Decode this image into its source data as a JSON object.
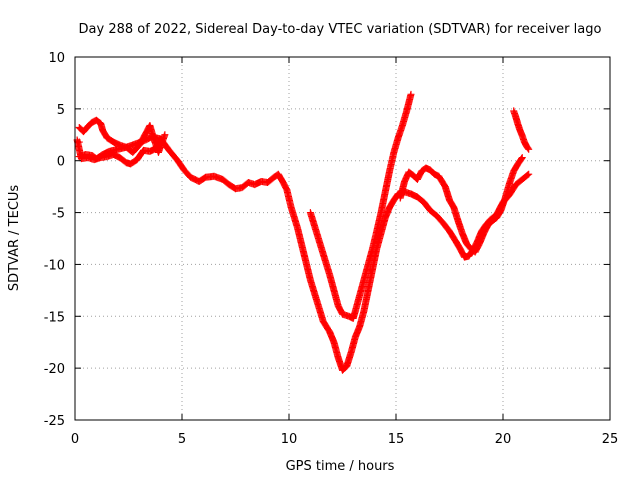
{
  "chart_data": {
    "type": "scatter",
    "title": "Day 288 of 2022, Sidereal Day-to-day VTEC variation (SDTVAR) for receiver lago",
    "xlabel": "GPS time / hours",
    "ylabel": "SDTVAR / TECUs",
    "xlim": [
      0,
      25
    ],
    "ylim": [
      -25,
      10
    ],
    "xticks": [
      0,
      5,
      10,
      15,
      20,
      25
    ],
    "yticks": [
      -25,
      -20,
      -15,
      -10,
      -5,
      0,
      5,
      10
    ],
    "grid": true,
    "marker": "+",
    "series": [
      {
        "name": "SDTVAR",
        "color": "#ff0000",
        "tracks": [
          [
            [
              0.2,
              0.4
            ],
            [
              0.5,
              0.6
            ],
            [
              0.8,
              0.5
            ],
            [
              1.0,
              0.2
            ],
            [
              1.3,
              0.6
            ],
            [
              1.6,
              0.9
            ],
            [
              2.0,
              1.1
            ],
            [
              2.4,
              1.3
            ],
            [
              2.8,
              1.6
            ],
            [
              3.2,
              1.9
            ],
            [
              3.6,
              2.3
            ],
            [
              4.0,
              2.1
            ],
            [
              4.4,
              1.0
            ],
            [
              4.8,
              0.0
            ],
            [
              5.1,
              -0.9
            ],
            [
              5.4,
              -1.6
            ],
            [
              5.8,
              -2.0
            ],
            [
              6.1,
              -1.6
            ],
            [
              6.5,
              -1.5
            ],
            [
              6.9,
              -1.8
            ],
            [
              7.2,
              -2.3
            ],
            [
              7.5,
              -2.7
            ],
            [
              7.8,
              -2.6
            ],
            [
              8.1,
              -2.1
            ],
            [
              8.4,
              -2.3
            ],
            [
              8.7,
              -2.0
            ],
            [
              9.0,
              -2.1
            ],
            [
              9.3,
              -1.6
            ],
            [
              9.5,
              -1.3
            ],
            [
              9.7,
              -2.0
            ],
            [
              9.9,
              -2.8
            ],
            [
              10.1,
              -4.5
            ],
            [
              10.4,
              -6.5
            ],
            [
              10.7,
              -9.0
            ],
            [
              11.0,
              -11.5
            ],
            [
              11.3,
              -13.5
            ],
            [
              11.6,
              -15.5
            ],
            [
              11.9,
              -16.5
            ],
            [
              12.1,
              -17.5
            ],
            [
              12.3,
              -19.0
            ],
            [
              12.5,
              -20.2
            ],
            [
              12.7,
              -19.8
            ],
            [
              12.9,
              -18.5
            ],
            [
              13.1,
              -17.0
            ],
            [
              13.3,
              -16.0
            ],
            [
              13.5,
              -14.5
            ],
            [
              13.7,
              -12.5
            ],
            [
              13.9,
              -10.5
            ],
            [
              14.1,
              -8.5
            ],
            [
              14.3,
              -7.0
            ],
            [
              14.5,
              -5.5
            ],
            [
              14.7,
              -4.5
            ],
            [
              14.9,
              -3.8
            ],
            [
              15.1,
              -3.2
            ],
            [
              15.4,
              -3.0
            ],
            [
              15.7,
              -3.2
            ],
            [
              16.0,
              -3.5
            ],
            [
              16.3,
              -4.0
            ],
            [
              16.6,
              -4.8
            ],
            [
              16.9,
              -5.3
            ],
            [
              17.2,
              -6.0
            ],
            [
              17.5,
              -6.8
            ],
            [
              17.8,
              -7.8
            ],
            [
              18.0,
              -8.5
            ],
            [
              18.2,
              -9.3
            ],
            [
              18.4,
              -9.2
            ],
            [
              18.6,
              -8.6
            ],
            [
              18.8,
              -7.8
            ],
            [
              19.0,
              -6.8
            ],
            [
              19.2,
              -6.2
            ],
            [
              19.4,
              -5.7
            ],
            [
              19.7,
              -5.2
            ],
            [
              20.0,
              -4.0
            ],
            [
              20.3,
              -3.3
            ],
            [
              20.6,
              -2.3
            ],
            [
              20.9,
              -1.8
            ],
            [
              21.2,
              -1.3
            ]
          ],
          [
            [
              0.2,
              3.2
            ],
            [
              0.4,
              2.8
            ],
            [
              0.6,
              3.3
            ],
            [
              0.8,
              3.7
            ],
            [
              1.0,
              3.9
            ],
            [
              1.2,
              3.6
            ],
            [
              1.3,
              2.9
            ],
            [
              1.5,
              2.2
            ],
            [
              1.8,
              1.8
            ],
            [
              2.1,
              1.5
            ],
            [
              2.4,
              1.3
            ],
            [
              2.7,
              0.8
            ],
            [
              3.0,
              1.5
            ],
            [
              3.3,
              2.6
            ],
            [
              3.5,
              3.4
            ],
            [
              3.7,
              2.0
            ],
            [
              3.9,
              0.8
            ],
            [
              4.2,
              2.5
            ]
          ],
          [
            [
              0.1,
              2.0
            ],
            [
              0.3,
              0.2
            ],
            [
              0.6,
              0.3
            ],
            [
              0.9,
              0.1
            ],
            [
              1.2,
              0.3
            ],
            [
              1.5,
              0.4
            ],
            [
              1.8,
              0.6
            ],
            [
              2.1,
              0.3
            ],
            [
              2.4,
              -0.2
            ],
            [
              2.6,
              -0.3
            ],
            [
              2.9,
              0.1
            ],
            [
              3.2,
              1.0
            ],
            [
              3.5,
              0.9
            ],
            [
              3.8,
              1.2
            ],
            [
              4.0,
              1.9
            ]
          ],
          [
            [
              11.0,
              -5.0
            ],
            [
              11.3,
              -7.0
            ],
            [
              11.6,
              -9.0
            ],
            [
              11.9,
              -11.0
            ],
            [
              12.1,
              -12.5
            ],
            [
              12.3,
              -14.0
            ],
            [
              12.5,
              -14.8
            ],
            [
              12.8,
              -15.0
            ],
            [
              13.0,
              -15.2
            ],
            [
              13.1,
              -14.5
            ],
            [
              13.3,
              -13.0
            ],
            [
              13.5,
              -11.5
            ],
            [
              13.7,
              -10.0
            ],
            [
              13.9,
              -8.5
            ],
            [
              14.1,
              -6.8
            ],
            [
              14.3,
              -5.0
            ],
            [
              14.5,
              -3.0
            ],
            [
              14.7,
              -1.0
            ],
            [
              14.9,
              0.8
            ],
            [
              15.1,
              2.2
            ],
            [
              15.3,
              3.4
            ],
            [
              15.5,
              4.8
            ],
            [
              15.7,
              6.4
            ]
          ],
          [
            [
              15.2,
              -3.6
            ],
            [
              15.4,
              -2.0
            ],
            [
              15.6,
              -1.1
            ],
            [
              15.8,
              -1.4
            ],
            [
              16.0,
              -1.8
            ],
            [
              16.2,
              -1.0
            ],
            [
              16.4,
              -0.7
            ],
            [
              16.6,
              -0.9
            ],
            [
              16.8,
              -1.3
            ],
            [
              17.0,
              -1.5
            ],
            [
              17.3,
              -2.5
            ],
            [
              17.5,
              -3.8
            ],
            [
              17.7,
              -4.5
            ],
            [
              17.9,
              -5.8
            ],
            [
              18.1,
              -7.0
            ],
            [
              18.3,
              -8.0
            ],
            [
              18.5,
              -8.5
            ],
            [
              18.7,
              -8.8
            ],
            [
              18.9,
              -8.0
            ],
            [
              19.1,
              -7.0
            ],
            [
              19.3,
              -6.2
            ],
            [
              19.5,
              -5.8
            ],
            [
              19.7,
              -5.5
            ],
            [
              19.9,
              -4.8
            ],
            [
              20.1,
              -3.6
            ],
            [
              20.3,
              -2.2
            ],
            [
              20.5,
              -1.0
            ],
            [
              20.7,
              -0.3
            ],
            [
              20.9,
              0.3
            ]
          ],
          [
            [
              20.5,
              4.8
            ],
            [
              20.6,
              4.2
            ],
            [
              20.7,
              3.5
            ],
            [
              20.8,
              2.9
            ],
            [
              20.9,
              2.4
            ],
            [
              21.0,
              1.8
            ],
            [
              21.1,
              1.4
            ],
            [
              21.2,
              1.1
            ]
          ]
        ],
        "outliers": [
          [
            13.8,
            -10.5
          ],
          [
            0.2,
            1.8
          ]
        ]
      }
    ]
  }
}
